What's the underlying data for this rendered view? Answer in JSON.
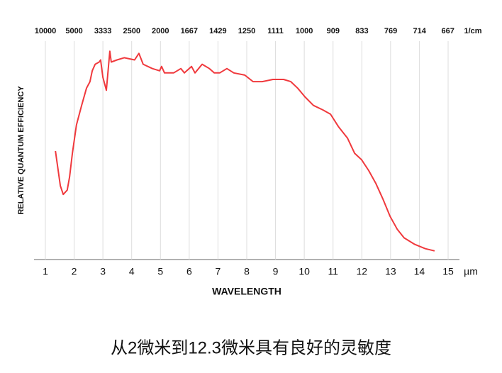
{
  "chart_data": {
    "type": "line",
    "x_label": "WAVELENGTH",
    "y_label": "RELATIVE QUANTUM EFFICIENCY",
    "x_unit": "µm",
    "x2_unit": "1/cm",
    "caption": "从2微米到12.3微米具有良好的灵敏度",
    "xlim": [
      1,
      15
    ],
    "xticks": [
      1,
      2,
      3,
      4,
      5,
      6,
      7,
      8,
      9,
      10,
      11,
      12,
      13,
      14,
      15
    ],
    "x2ticks": [
      10000,
      5000,
      3333,
      2500,
      2000,
      1667,
      1429,
      1250,
      1111,
      1000,
      909,
      833,
      769,
      714,
      667
    ],
    "ylim": [
      0,
      1
    ],
    "grid": true,
    "series": [
      {
        "color": "#f0393d",
        "x": [
          1.35,
          1.52,
          1.62,
          1.76,
          1.84,
          1.94,
          2.08,
          2.26,
          2.43,
          2.55,
          2.63,
          2.73,
          2.87,
          2.92,
          3.0,
          3.12,
          3.24,
          3.29,
          3.49,
          3.74,
          4.1,
          4.25,
          4.4,
          4.72,
          4.97,
          5.04,
          5.14,
          5.46,
          5.71,
          5.83,
          6.08,
          6.2,
          6.45,
          6.7,
          6.87,
          7.06,
          7.31,
          7.55,
          7.93,
          8.22,
          8.54,
          8.91,
          9.28,
          9.53,
          9.77,
          10.02,
          10.32,
          10.64,
          10.91,
          11.2,
          11.5,
          11.75,
          11.99,
          12.24,
          12.49,
          12.73,
          12.98,
          13.23,
          13.47,
          13.84,
          14.21,
          14.53
        ],
        "values": [
          0.5,
          0.34,
          0.3,
          0.32,
          0.38,
          0.49,
          0.62,
          0.71,
          0.79,
          0.82,
          0.87,
          0.9,
          0.91,
          0.92,
          0.84,
          0.78,
          0.96,
          0.91,
          0.92,
          0.93,
          0.92,
          0.95,
          0.9,
          0.88,
          0.87,
          0.89,
          0.86,
          0.86,
          0.88,
          0.86,
          0.89,
          0.86,
          0.9,
          0.88,
          0.86,
          0.86,
          0.88,
          0.86,
          0.85,
          0.82,
          0.82,
          0.83,
          0.83,
          0.82,
          0.79,
          0.75,
          0.71,
          0.69,
          0.67,
          0.61,
          0.56,
          0.49,
          0.46,
          0.41,
          0.35,
          0.28,
          0.2,
          0.14,
          0.1,
          0.07,
          0.05,
          0.04
        ]
      }
    ]
  }
}
